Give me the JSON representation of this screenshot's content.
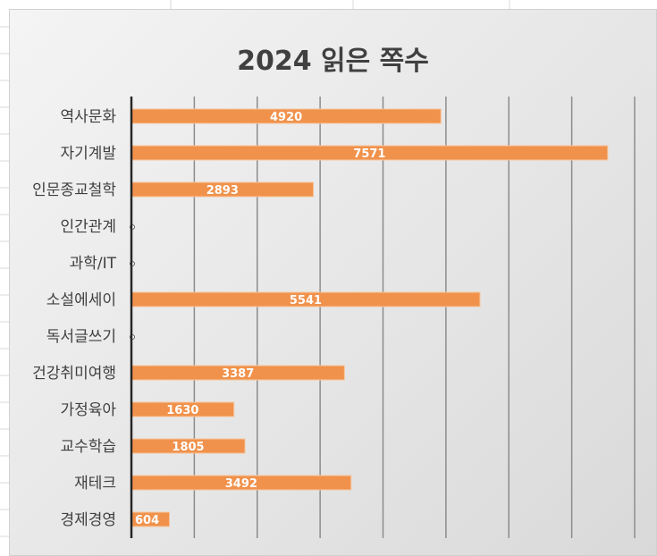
{
  "chart_data": {
    "type": "bar",
    "orientation": "horizontal",
    "title": "2024 읽은 쪽수",
    "categories": [
      "역사문화",
      "자기계발",
      "인문종교철학",
      "인간관계",
      "과학/IT",
      "소설에세이",
      "독서글쓰기",
      "건강취미여행",
      "가정육아",
      "교수학습",
      "재테크",
      "경제경영"
    ],
    "values": [
      4920,
      7571,
      2893,
      0,
      0,
      5541,
      0,
      3387,
      1630,
      1805,
      3492,
      604
    ],
    "value_labels": [
      "4920",
      "7571",
      "2893",
      "0",
      "0",
      "5541",
      "0",
      "3387",
      "1630",
      "1805",
      "3492",
      "604"
    ],
    "xlim": [
      0,
      8000
    ],
    "grid": "vertical",
    "legend": "none",
    "bar_color": "#F0924C",
    "data_label_color": "#FFFFFF"
  }
}
